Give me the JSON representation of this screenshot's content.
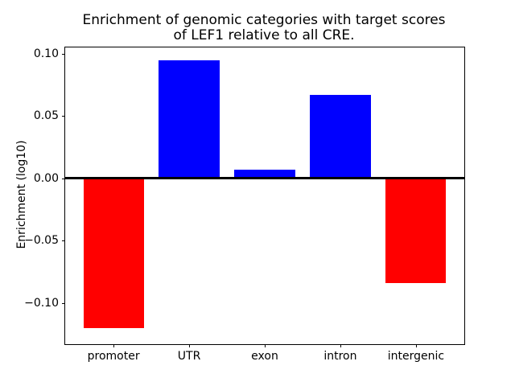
{
  "title": {
    "line1": "Enrichment of genomic categories with target scores",
    "line2": "of LEF1 relative to all CRE."
  },
  "chart_data": {
    "type": "bar",
    "title": "Enrichment of genomic categories with target scores of LEF1 relative to all CRE.",
    "categories": [
      "promoter",
      "UTR",
      "exon",
      "intron",
      "intergenic"
    ],
    "values": [
      -0.12,
      0.095,
      0.007,
      0.067,
      -0.084
    ],
    "xlabel": "",
    "ylabel": "Enrichment (log10)",
    "ylim": [
      -0.133,
      0.105
    ],
    "xlim": [
      -0.64,
      4.64
    ],
    "yticks": [
      0.1,
      0.05,
      0.0,
      -0.05,
      -0.1
    ],
    "ytick_labels": [
      "0.10",
      "0.05",
      "0.00",
      "−0.05",
      "−0.10"
    ],
    "bar_width_fraction": 0.8,
    "positive_color": "#0000ff",
    "negative_color": "#ff0000",
    "zero_line": true,
    "zero_line_color": "#000000",
    "grid": false,
    "legend_position": "none",
    "background_color": "#ffffff"
  }
}
